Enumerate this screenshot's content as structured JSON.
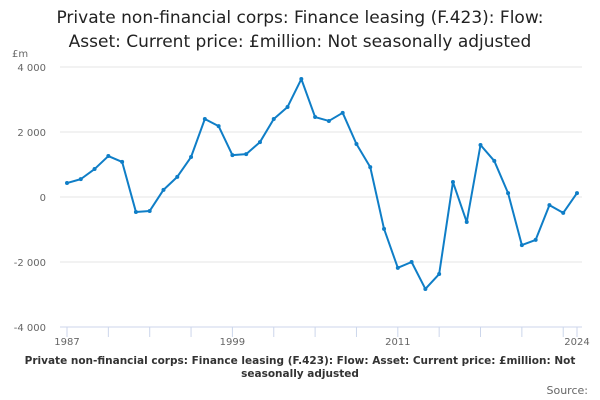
{
  "chart_data": {
    "type": "line",
    "title_line1": "Private non-financial corps: Finance leasing (F.423): Flow:",
    "title_line2": "Asset: Current price: £million: Not seasonally adjusted",
    "ylabel": "£m",
    "ylim": [
      -4000,
      4000
    ],
    "yticks": [
      4000,
      2000,
      0,
      -2000,
      -4000
    ],
    "ytick_labels": [
      "4 000",
      "2 000",
      "0",
      "-2 000",
      "-4 000"
    ],
    "xlim": [
      1987,
      2024
    ],
    "xtick_labels": [
      "1987",
      "1999",
      "2011",
      "2024"
    ],
    "grid": true,
    "color": "#0F7EC7",
    "x": [
      1987,
      1988,
      1989,
      1990,
      1991,
      1992,
      1993,
      1994,
      1995,
      1996,
      1997,
      1998,
      1999,
      2000,
      2001,
      2002,
      2003,
      2004,
      2005,
      2006,
      2007,
      2008,
      2009,
      2010,
      2011,
      2012,
      2013,
      2014,
      2015,
      2016,
      2017,
      2018,
      2019,
      2020,
      2021,
      2022,
      2023,
      2024
    ],
    "values": [
      430,
      550,
      860,
      1260,
      1080,
      -460,
      -430,
      220,
      620,
      1230,
      2400,
      2180,
      1290,
      1320,
      1690,
      2400,
      2770,
      3630,
      2460,
      2340,
      2590,
      1630,
      920,
      -980,
      -2180,
      -2000,
      -2830,
      -2370,
      460,
      -770,
      1600,
      1110,
      120,
      -1480,
      -1320,
      -250,
      -490,
      120
    ]
  },
  "footer": "Private non-financial corps: Finance leasing (F.423): Flow: Asset: Current price: £million: Not seasonally adjusted",
  "source": "Source:"
}
